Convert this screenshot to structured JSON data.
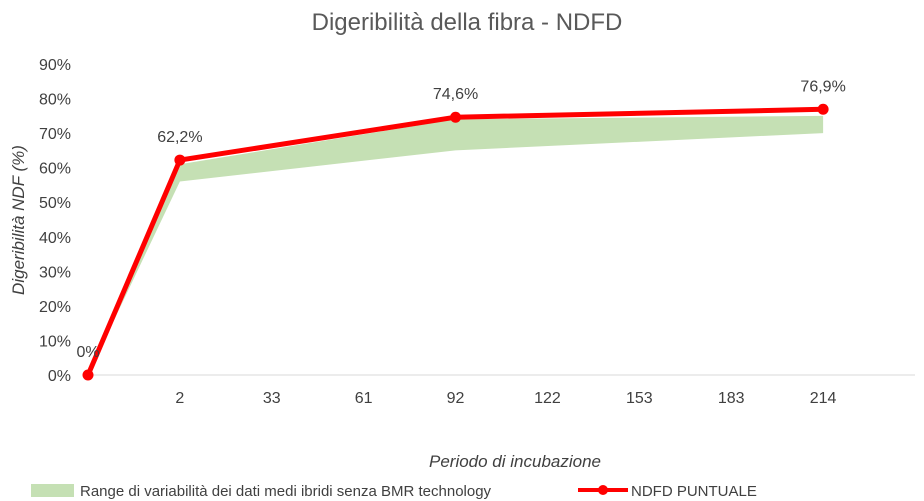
{
  "chart_data": {
    "type": "line",
    "title": "Digeribilità della fibra  - NDFD",
    "xlabel": "Periodo di incubazione",
    "ylabel": "Digeribilità NDF (%)",
    "x_categories": [
      "",
      "2",
      "33",
      "61",
      "92",
      "122",
      "153",
      "183",
      "214"
    ],
    "y_ticks": [
      "0%",
      "10%",
      "20%",
      "30%",
      "40%",
      "50%",
      "60%",
      "70%",
      "80%",
      "90%"
    ],
    "ylim": [
      0,
      90
    ],
    "series": [
      {
        "name": "NDFD PUNTUALE",
        "color": "#ff0000",
        "points": [
          {
            "category_index": 0,
            "value": 0,
            "label": "0%"
          },
          {
            "category_index": 1,
            "value": 62.2,
            "label": "62,2%"
          },
          {
            "category_index": 4,
            "value": 74.6,
            "label": "74,6%"
          },
          {
            "category_index": 8,
            "value": 76.9,
            "label": "76,9%"
          }
        ]
      }
    ],
    "band": {
      "name": "Range di variabilità dei dati medi ibridi senza BMR technology",
      "color": "#c5e0b4",
      "points": [
        {
          "category_index": 0,
          "low": 0,
          "high": 0
        },
        {
          "category_index": 1,
          "low": 56,
          "high": 61
        },
        {
          "category_index": 4,
          "low": 65,
          "high": 74
        },
        {
          "category_index": 8,
          "low": 70,
          "high": 75
        }
      ]
    },
    "legend": [
      {
        "label": "Range di variabilità dei dati medi ibridi senza BMR technology",
        "symbol": "area"
      },
      {
        "label": "NDFD PUNTUALE",
        "symbol": "line-marker"
      }
    ],
    "legend_position": "bottom",
    "grid": false
  }
}
